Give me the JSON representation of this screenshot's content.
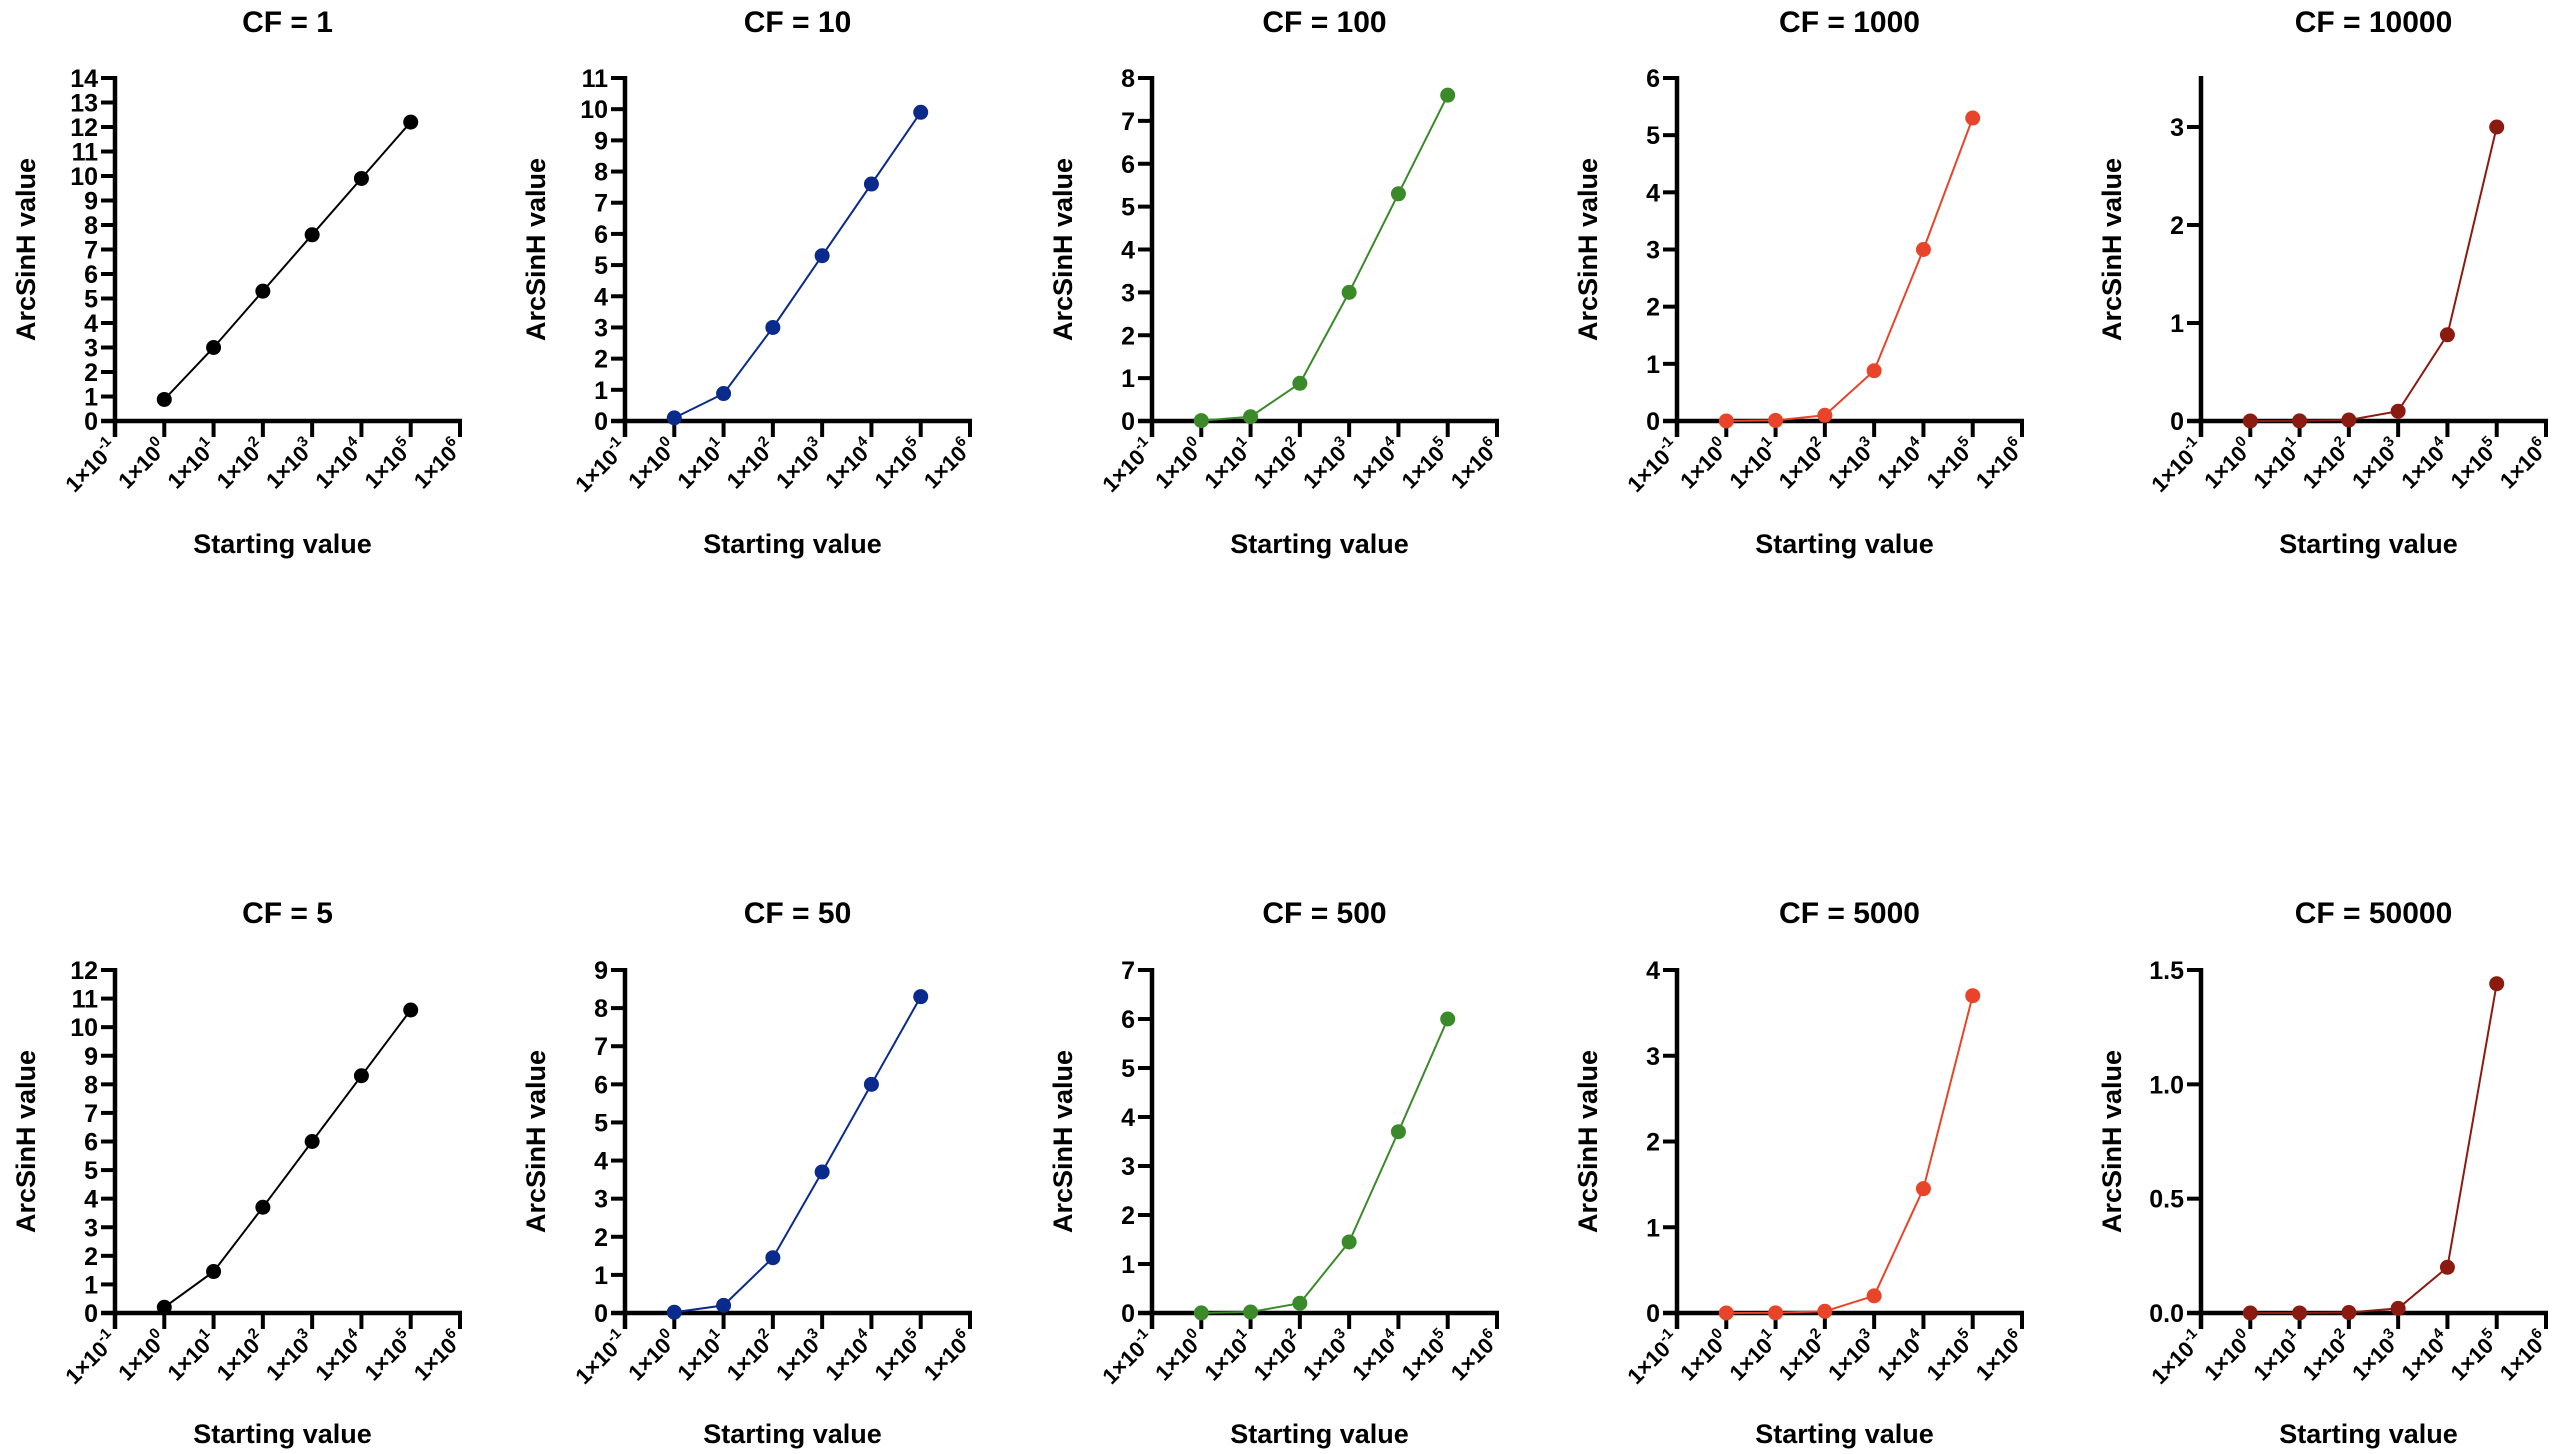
{
  "figure": {
    "layout": "2 rows x 5 columns grid of line plots"
  },
  "chart_data": [
    {
      "type": "line",
      "title": "CF = 1",
      "xlabel": "Starting value",
      "ylabel": "ArcSinH value",
      "xscale": "log10",
      "xlim": [
        0.1,
        1000000
      ],
      "xticks": [
        {
          "base": "1×10",
          "exp": "-1"
        },
        {
          "base": "1×10",
          "exp": "0"
        },
        {
          "base": "1×10",
          "exp": "1"
        },
        {
          "base": "1×10",
          "exp": "2"
        },
        {
          "base": "1×10",
          "exp": "3"
        },
        {
          "base": "1×10",
          "exp": "4"
        },
        {
          "base": "1×10",
          "exp": "5"
        },
        {
          "base": "1×10",
          "exp": "6"
        }
      ],
      "ylim": [
        0,
        14
      ],
      "yticks": [
        "0",
        "1",
        "2",
        "3",
        "4",
        "5",
        "6",
        "7",
        "8",
        "9",
        "10",
        "11",
        "12",
        "13",
        "14"
      ],
      "yticks_values": [
        0,
        1,
        2,
        3,
        4,
        5,
        6,
        7,
        8,
        9,
        10,
        11,
        12,
        13,
        14
      ],
      "color": "#000000",
      "x": [
        1,
        10,
        100,
        1000,
        10000,
        100000
      ],
      "y": [
        0.88,
        3.0,
        5.3,
        7.6,
        9.9,
        12.2
      ],
      "grid": false
    },
    {
      "type": "line",
      "title": "CF = 10",
      "xlabel": "Starting value",
      "ylabel": "ArcSinH value",
      "xscale": "log10",
      "xlim": [
        0.1,
        1000000
      ],
      "xticks": [
        {
          "base": "1×10",
          "exp": "-1"
        },
        {
          "base": "1×10",
          "exp": "0"
        },
        {
          "base": "1×10",
          "exp": "1"
        },
        {
          "base": "1×10",
          "exp": "2"
        },
        {
          "base": "1×10",
          "exp": "3"
        },
        {
          "base": "1×10",
          "exp": "4"
        },
        {
          "base": "1×10",
          "exp": "5"
        },
        {
          "base": "1×10",
          "exp": "6"
        }
      ],
      "ylim": [
        0,
        11
      ],
      "yticks": [
        "0",
        "1",
        "2",
        "3",
        "4",
        "5",
        "6",
        "7",
        "8",
        "9",
        "10",
        "11"
      ],
      "yticks_values": [
        0,
        1,
        2,
        3,
        4,
        5,
        6,
        7,
        8,
        9,
        10,
        11
      ],
      "color": "#0a2a8c",
      "x": [
        1,
        10,
        100,
        1000,
        10000,
        100000
      ],
      "y": [
        0.1,
        0.88,
        3.0,
        5.3,
        7.6,
        9.9
      ],
      "grid": false
    },
    {
      "type": "line",
      "title": "CF = 100",
      "xlabel": "Starting value",
      "ylabel": "ArcSinH value",
      "xscale": "log10",
      "xlim": [
        0.1,
        1000000
      ],
      "xticks": [
        {
          "base": "1×10",
          "exp": "-1"
        },
        {
          "base": "1×10",
          "exp": "0"
        },
        {
          "base": "1×10",
          "exp": "1"
        },
        {
          "base": "1×10",
          "exp": "2"
        },
        {
          "base": "1×10",
          "exp": "3"
        },
        {
          "base": "1×10",
          "exp": "4"
        },
        {
          "base": "1×10",
          "exp": "5"
        },
        {
          "base": "1×10",
          "exp": "6"
        }
      ],
      "ylim": [
        0,
        8
      ],
      "yticks": [
        "0",
        "1",
        "2",
        "3",
        "4",
        "5",
        "6",
        "7",
        "8"
      ],
      "yticks_values": [
        0,
        1,
        2,
        3,
        4,
        5,
        6,
        7,
        8
      ],
      "color": "#3a8a2a",
      "x": [
        1,
        10,
        100,
        1000,
        10000,
        100000
      ],
      "y": [
        0.01,
        0.1,
        0.88,
        3.0,
        5.3,
        7.6
      ],
      "grid": false
    },
    {
      "type": "line",
      "title": "CF = 1000",
      "xlabel": "Starting value",
      "ylabel": "ArcSinH value",
      "xscale": "log10",
      "xlim": [
        0.1,
        1000000
      ],
      "xticks": [
        {
          "base": "1×10",
          "exp": "-1"
        },
        {
          "base": "1×10",
          "exp": "0"
        },
        {
          "base": "1×10",
          "exp": "1"
        },
        {
          "base": "1×10",
          "exp": "2"
        },
        {
          "base": "1×10",
          "exp": "3"
        },
        {
          "base": "1×10",
          "exp": "4"
        },
        {
          "base": "1×10",
          "exp": "5"
        },
        {
          "base": "1×10",
          "exp": "6"
        }
      ],
      "ylim": [
        0,
        6
      ],
      "yticks": [
        "0",
        "1",
        "2",
        "3",
        "4",
        "5",
        "6"
      ],
      "yticks_values": [
        0,
        1,
        2,
        3,
        4,
        5,
        6
      ],
      "color": "#e8442a",
      "x": [
        1,
        10,
        100,
        1000,
        10000,
        100000
      ],
      "y": [
        0.001,
        0.01,
        0.1,
        0.88,
        3.0,
        5.3
      ],
      "grid": false
    },
    {
      "type": "line",
      "title": "CF = 10000",
      "xlabel": "Starting value",
      "ylabel": "ArcSinH value",
      "xscale": "log10",
      "xlim": [
        0.1,
        1000000
      ],
      "xticks": [
        {
          "base": "1×10",
          "exp": "-1"
        },
        {
          "base": "1×10",
          "exp": "0"
        },
        {
          "base": "1×10",
          "exp": "1"
        },
        {
          "base": "1×10",
          "exp": "2"
        },
        {
          "base": "1×10",
          "exp": "3"
        },
        {
          "base": "1×10",
          "exp": "4"
        },
        {
          "base": "1×10",
          "exp": "5"
        },
        {
          "base": "1×10",
          "exp": "6"
        }
      ],
      "ylim": [
        0,
        3.5
      ],
      "yticks": [
        "0",
        "1",
        "2",
        "3"
      ],
      "yticks_values": [
        0,
        1,
        2,
        3
      ],
      "color": "#8b1a10",
      "x": [
        1,
        10,
        100,
        1000,
        10000,
        100000
      ],
      "y": [
        0.0001,
        0.001,
        0.01,
        0.1,
        0.88,
        3.0
      ],
      "grid": false
    },
    {
      "type": "line",
      "title": "CF = 5",
      "xlabel": "Starting value",
      "ylabel": "ArcSinH value",
      "xscale": "log10",
      "xlim": [
        0.1,
        1000000
      ],
      "xticks": [
        {
          "base": "1×10",
          "exp": "-1"
        },
        {
          "base": "1×10",
          "exp": "0"
        },
        {
          "base": "1×10",
          "exp": "1"
        },
        {
          "base": "1×10",
          "exp": "2"
        },
        {
          "base": "1×10",
          "exp": "3"
        },
        {
          "base": "1×10",
          "exp": "4"
        },
        {
          "base": "1×10",
          "exp": "5"
        },
        {
          "base": "1×10",
          "exp": "6"
        }
      ],
      "ylim": [
        0,
        12
      ],
      "yticks": [
        "0",
        "1",
        "2",
        "3",
        "4",
        "5",
        "6",
        "7",
        "8",
        "9",
        "10",
        "11",
        "12"
      ],
      "yticks_values": [
        0,
        1,
        2,
        3,
        4,
        5,
        6,
        7,
        8,
        9,
        10,
        11,
        12
      ],
      "color": "#000000",
      "x": [
        1,
        10,
        100,
        1000,
        10000,
        100000
      ],
      "y": [
        0.2,
        1.45,
        3.7,
        6.0,
        8.3,
        10.6
      ],
      "grid": false
    },
    {
      "type": "line",
      "title": "CF = 50",
      "xlabel": "Starting value",
      "ylabel": "ArcSinH value",
      "xscale": "log10",
      "xlim": [
        0.1,
        1000000
      ],
      "xticks": [
        {
          "base": "1×10",
          "exp": "-1"
        },
        {
          "base": "1×10",
          "exp": "0"
        },
        {
          "base": "1×10",
          "exp": "1"
        },
        {
          "base": "1×10",
          "exp": "2"
        },
        {
          "base": "1×10",
          "exp": "3"
        },
        {
          "base": "1×10",
          "exp": "4"
        },
        {
          "base": "1×10",
          "exp": "5"
        },
        {
          "base": "1×10",
          "exp": "6"
        }
      ],
      "ylim": [
        0,
        9
      ],
      "yticks": [
        "0",
        "1",
        "2",
        "3",
        "4",
        "5",
        "6",
        "7",
        "8",
        "9"
      ],
      "yticks_values": [
        0,
        1,
        2,
        3,
        4,
        5,
        6,
        7,
        8,
        9
      ],
      "color": "#0a2a8c",
      "x": [
        1,
        10,
        100,
        1000,
        10000,
        100000
      ],
      "y": [
        0.02,
        0.2,
        1.45,
        3.7,
        6.0,
        8.3
      ],
      "grid": false
    },
    {
      "type": "line",
      "title": "CF = 500",
      "xlabel": "Starting value",
      "ylabel": "ArcSinH value",
      "xscale": "log10",
      "xlim": [
        0.1,
        1000000
      ],
      "xticks": [
        {
          "base": "1×10",
          "exp": "-1"
        },
        {
          "base": "1×10",
          "exp": "0"
        },
        {
          "base": "1×10",
          "exp": "1"
        },
        {
          "base": "1×10",
          "exp": "2"
        },
        {
          "base": "1×10",
          "exp": "3"
        },
        {
          "base": "1×10",
          "exp": "4"
        },
        {
          "base": "1×10",
          "exp": "5"
        },
        {
          "base": "1×10",
          "exp": "6"
        }
      ],
      "ylim": [
        0,
        7
      ],
      "yticks": [
        "0",
        "1",
        "2",
        "3",
        "4",
        "5",
        "6",
        "7"
      ],
      "yticks_values": [
        0,
        1,
        2,
        3,
        4,
        5,
        6,
        7
      ],
      "color": "#3a8a2a",
      "x": [
        1,
        10,
        100,
        1000,
        10000,
        100000
      ],
      "y": [
        0.002,
        0.02,
        0.2,
        1.45,
        3.7,
        6.0
      ],
      "grid": false
    },
    {
      "type": "line",
      "title": "CF = 5000",
      "xlabel": "Starting value",
      "ylabel": "ArcSinH value",
      "xscale": "log10",
      "xlim": [
        0.1,
        1000000
      ],
      "xticks": [
        {
          "base": "1×10",
          "exp": "-1"
        },
        {
          "base": "1×10",
          "exp": "0"
        },
        {
          "base": "1×10",
          "exp": "1"
        },
        {
          "base": "1×10",
          "exp": "2"
        },
        {
          "base": "1×10",
          "exp": "3"
        },
        {
          "base": "1×10",
          "exp": "4"
        },
        {
          "base": "1×10",
          "exp": "5"
        },
        {
          "base": "1×10",
          "exp": "6"
        }
      ],
      "ylim": [
        0,
        4
      ],
      "yticks": [
        "0",
        "1",
        "2",
        "3",
        "4"
      ],
      "yticks_values": [
        0,
        1,
        2,
        3,
        4
      ],
      "color": "#e8442a",
      "x": [
        1,
        10,
        100,
        1000,
        10000,
        100000
      ],
      "y": [
        0.0002,
        0.002,
        0.02,
        0.2,
        1.45,
        3.7
      ],
      "grid": false
    },
    {
      "type": "line",
      "title": "CF = 50000",
      "xlabel": "Starting value",
      "ylabel": "ArcSinH value",
      "xscale": "log10",
      "xlim": [
        0.1,
        1000000
      ],
      "xticks": [
        {
          "base": "1×10",
          "exp": "-1"
        },
        {
          "base": "1×10",
          "exp": "0"
        },
        {
          "base": "1×10",
          "exp": "1"
        },
        {
          "base": "1×10",
          "exp": "2"
        },
        {
          "base": "1×10",
          "exp": "3"
        },
        {
          "base": "1×10",
          "exp": "4"
        },
        {
          "base": "1×10",
          "exp": "5"
        },
        {
          "base": "1×10",
          "exp": "6"
        }
      ],
      "ylim": [
        0,
        1.5
      ],
      "yticks": [
        "0.0",
        "0.5",
        "1.0",
        "1.5"
      ],
      "yticks_values": [
        0,
        0.5,
        1.0,
        1.5
      ],
      "color": "#8b1a10",
      "x": [
        1,
        10,
        100,
        1000,
        10000,
        100000
      ],
      "y": [
        2e-05,
        0.0002,
        0.002,
        0.02,
        0.2,
        1.44
      ],
      "grid": false
    }
  ]
}
